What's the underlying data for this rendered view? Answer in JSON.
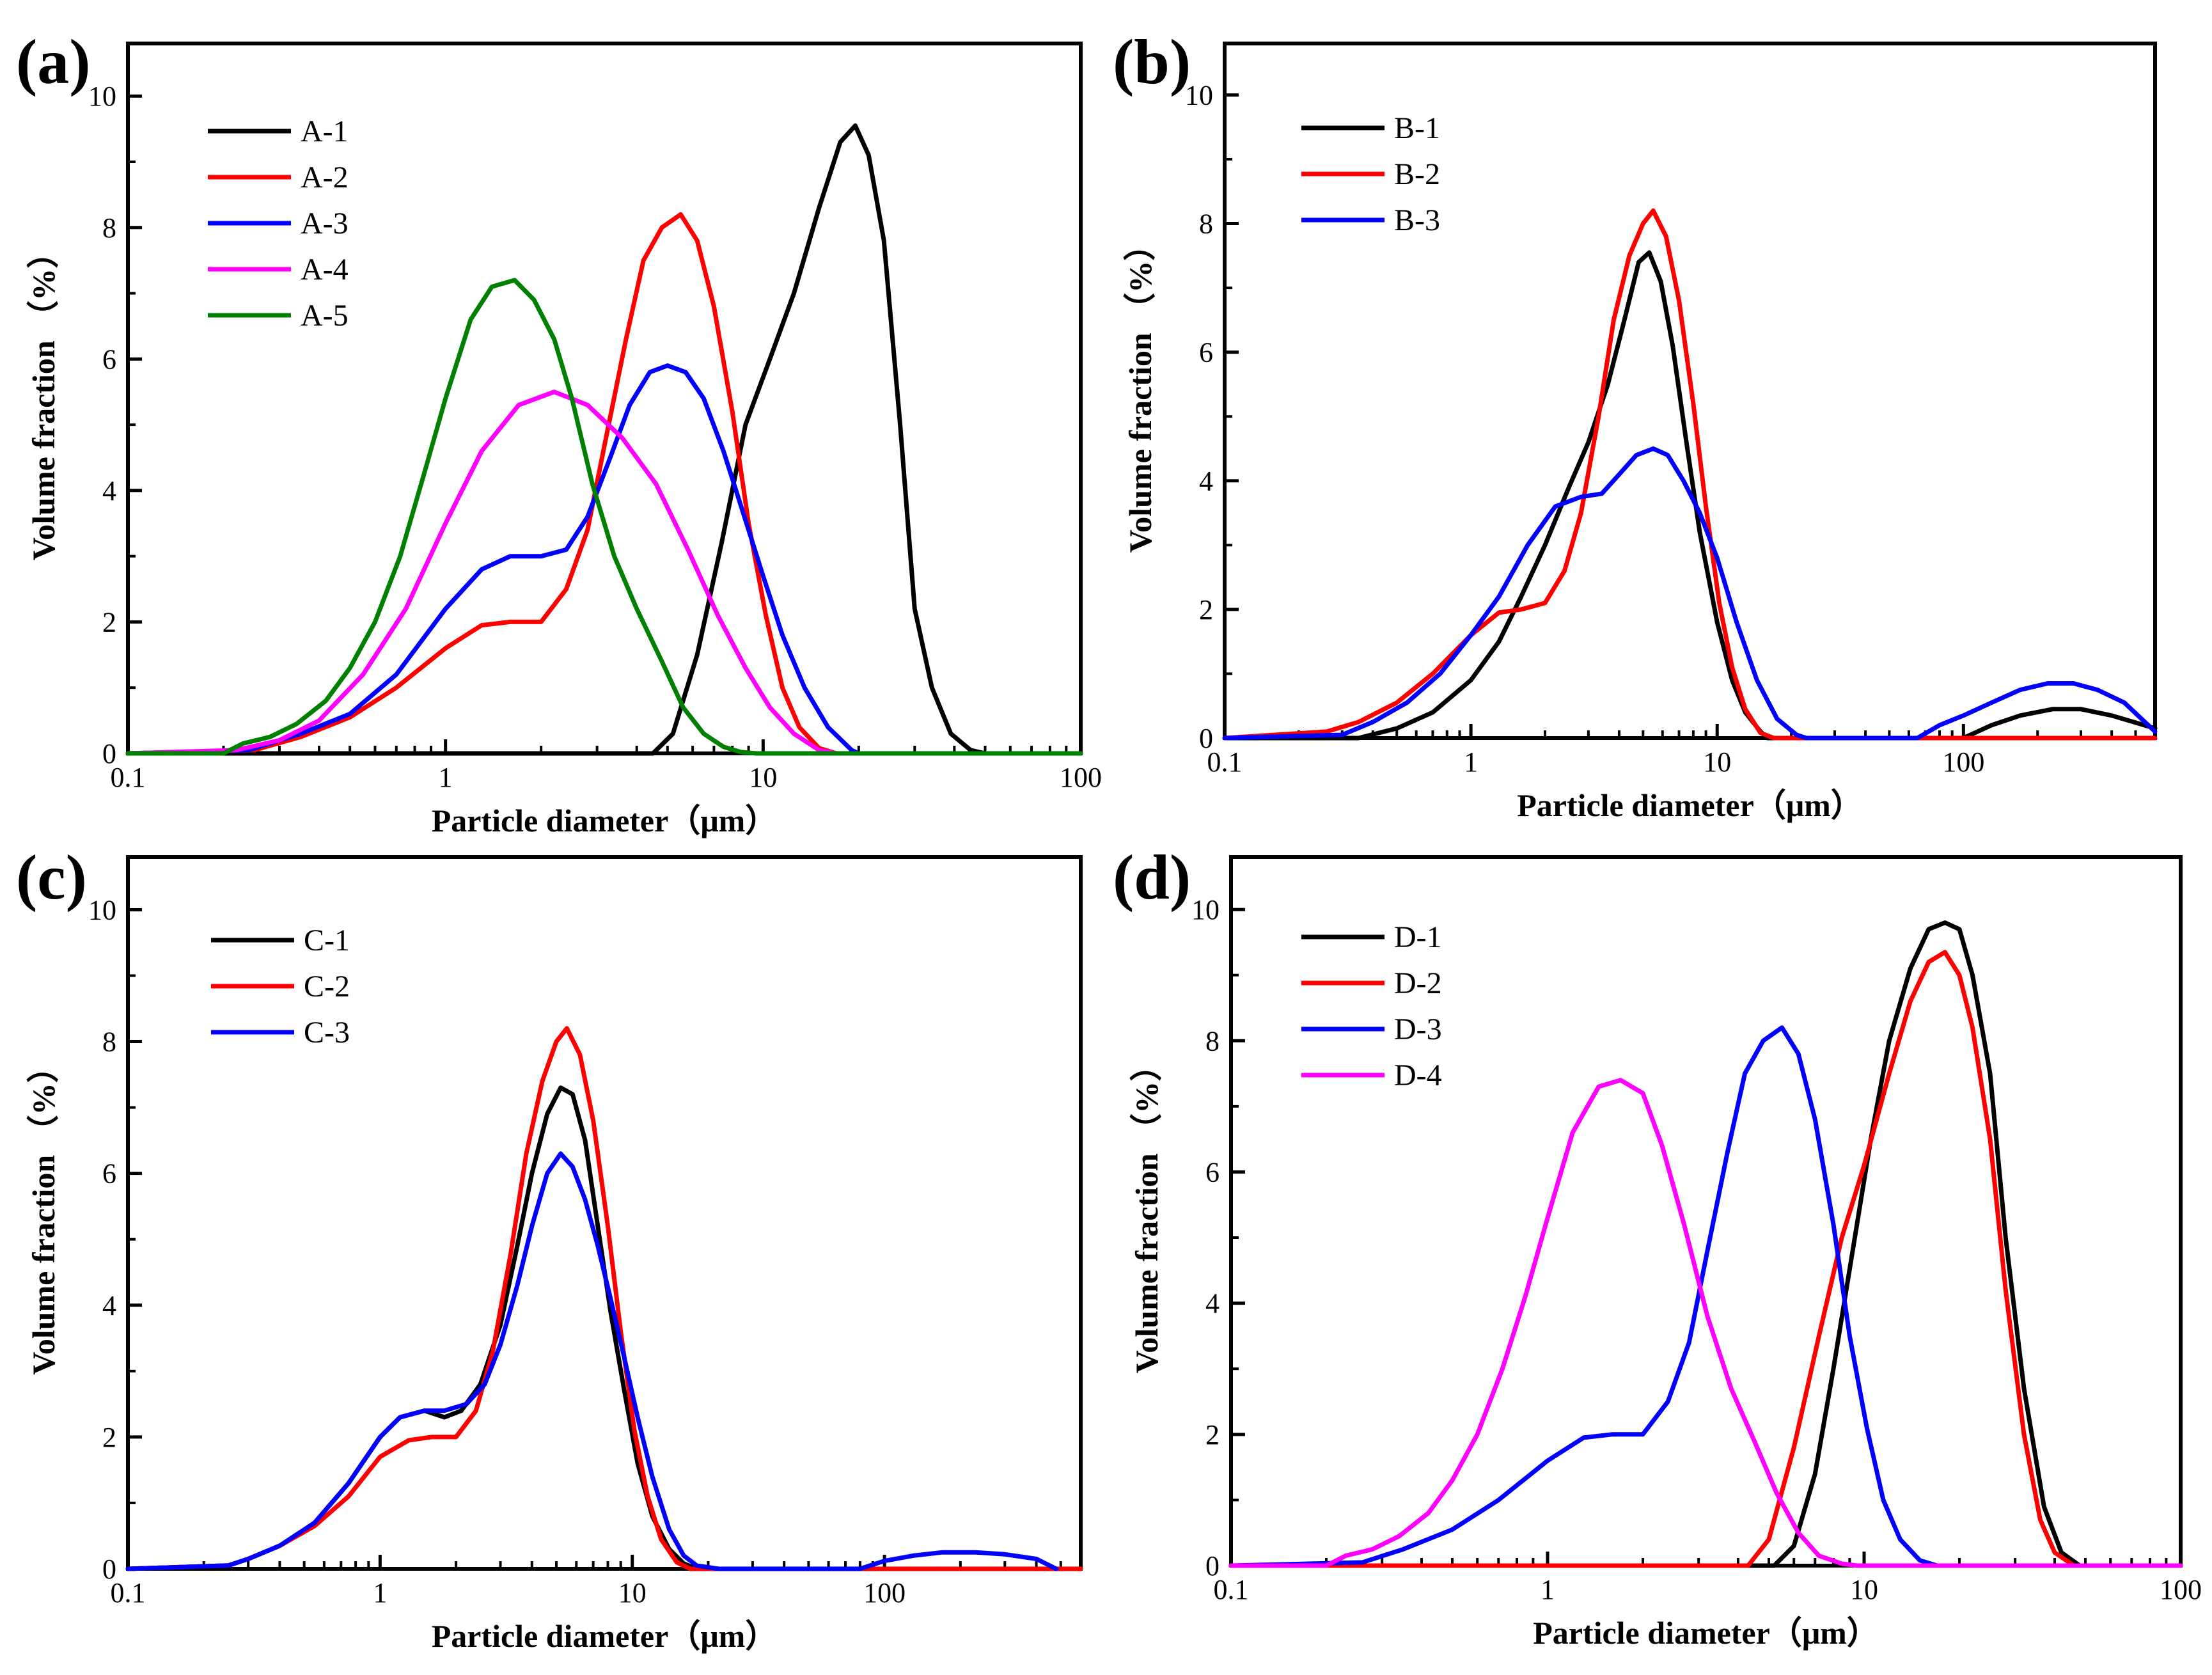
{
  "chart_data": [
    {
      "panel": "(a)",
      "type": "line",
      "xscale": "log",
      "xlabel": "Particle diameter（μm）",
      "ylabel": "Volume fraction （%）",
      "xlim": [
        0.1,
        100
      ],
      "ylim": [
        0,
        10.8
      ],
      "xticks": [
        0.1,
        1,
        10,
        100
      ],
      "xtick_labels": [
        "0.1",
        "1",
        "10",
        "100"
      ],
      "yticks": [
        0,
        2,
        4,
        6,
        8,
        10
      ],
      "ytick_labels": [
        "0",
        "2",
        "4",
        "6",
        "8",
        "10"
      ],
      "legend_position": "top-left",
      "series": [
        {
          "name": "A-1",
          "color": "#000000",
          "x": [
            0.1,
            4.5,
            5.2,
            6.2,
            7.4,
            8.8,
            10.5,
            12.5,
            15,
            17.5,
            19.5,
            21.5,
            24,
            27,
            30,
            34,
            39,
            45,
            50,
            100
          ],
          "y": [
            0,
            0,
            0.3,
            1.5,
            3.2,
            5.0,
            6.0,
            7.0,
            8.3,
            9.3,
            9.55,
            9.1,
            7.8,
            5.0,
            2.2,
            1.0,
            0.3,
            0.05,
            0,
            0
          ]
        },
        {
          "name": "A-2",
          "color": "#ff0000",
          "x": [
            0.1,
            0.25,
            0.35,
            0.5,
            0.7,
            1.0,
            1.3,
            1.6,
            2.0,
            2.4,
            2.8,
            3.2,
            3.7,
            4.2,
            4.8,
            5.5,
            6.2,
            7.0,
            8.0,
            9.0,
            10.2,
            11.5,
            13,
            15,
            17,
            100
          ],
          "y": [
            0,
            0.05,
            0.25,
            0.55,
            1.0,
            1.6,
            1.95,
            2.0,
            2.0,
            2.5,
            3.4,
            4.8,
            6.3,
            7.5,
            8.0,
            8.2,
            7.8,
            6.8,
            5.2,
            3.5,
            2.1,
            1.0,
            0.4,
            0.08,
            0,
            0
          ]
        },
        {
          "name": "A-3",
          "color": "#0000ff",
          "x": [
            0.1,
            0.24,
            0.35,
            0.5,
            0.7,
            1.0,
            1.3,
            1.6,
            2.0,
            2.4,
            2.8,
            3.3,
            3.8,
            4.4,
            5.0,
            5.7,
            6.5,
            7.5,
            8.6,
            10,
            11.5,
            13.5,
            16,
            19,
            20,
            100
          ],
          "y": [
            0,
            0.05,
            0.3,
            0.6,
            1.2,
            2.2,
            2.8,
            3.0,
            3.0,
            3.1,
            3.6,
            4.5,
            5.3,
            5.8,
            5.9,
            5.8,
            5.4,
            4.6,
            3.7,
            2.7,
            1.8,
            1.0,
            0.4,
            0.05,
            0,
            0
          ]
        },
        {
          "name": "A-4",
          "color": "#ff00ff",
          "x": [
            0.1,
            0.22,
            0.3,
            0.4,
            0.55,
            0.75,
            1.0,
            1.3,
            1.7,
            2.2,
            2.8,
            3.6,
            4.6,
            5.8,
            7.2,
            8.8,
            10.5,
            12.5,
            15,
            17,
            100
          ],
          "y": [
            0,
            0.05,
            0.2,
            0.5,
            1.2,
            2.2,
            3.5,
            4.6,
            5.3,
            5.5,
            5.3,
            4.8,
            4.1,
            3.1,
            2.1,
            1.3,
            0.7,
            0.3,
            0.05,
            0,
            0
          ]
        },
        {
          "name": "A-5",
          "color": "#008000",
          "x": [
            0.1,
            0.2,
            0.23,
            0.28,
            0.34,
            0.42,
            0.5,
            0.6,
            0.72,
            0.85,
            1.0,
            1.2,
            1.4,
            1.65,
            1.9,
            2.2,
            2.5,
            2.9,
            3.4,
            4.0,
            4.8,
            5.6,
            6.5,
            7.5,
            8.5,
            9.5,
            100
          ],
          "y": [
            0,
            0,
            0.15,
            0.25,
            0.45,
            0.8,
            1.3,
            2.0,
            3.0,
            4.2,
            5.4,
            6.6,
            7.1,
            7.2,
            6.9,
            6.3,
            5.4,
            4.1,
            3.0,
            2.2,
            1.4,
            0.7,
            0.3,
            0.1,
            0.02,
            0,
            0
          ]
        }
      ]
    },
    {
      "panel": "(b)",
      "type": "line",
      "xscale": "log",
      "xlabel": "Particle diameter（μm）",
      "ylabel": "Volume fraction （%）",
      "xlim": [
        0.1,
        600
      ],
      "ylim": [
        0,
        10.8
      ],
      "xticks": [
        0.1,
        1,
        10,
        100
      ],
      "xtick_labels": [
        "0.1",
        "1",
        "10",
        "100"
      ],
      "yticks": [
        0,
        2,
        4,
        6,
        8,
        10
      ],
      "ytick_labels": [
        "0",
        "2",
        "4",
        "6",
        "8",
        "10"
      ],
      "legend_position": "top-left",
      "series": [
        {
          "name": "B-1",
          "color": "#000000",
          "x": [
            0.1,
            0.35,
            0.5,
            0.7,
            1.0,
            1.3,
            1.6,
            2.0,
            2.5,
            3.0,
            3.6,
            4.2,
            4.8,
            5.3,
            5.9,
            6.6,
            7.5,
            8.5,
            10,
            11.5,
            13,
            15,
            16,
            100,
            130,
            170,
            230,
            300,
            400,
            600
          ],
          "y": [
            0,
            0,
            0.15,
            0.4,
            0.9,
            1.5,
            2.2,
            3.0,
            3.9,
            4.6,
            5.5,
            6.5,
            7.4,
            7.55,
            7.1,
            6.1,
            4.6,
            3.2,
            1.8,
            0.9,
            0.4,
            0.1,
            0,
            0,
            0.2,
            0.35,
            0.45,
            0.45,
            0.35,
            0.15
          ]
        },
        {
          "name": "B-2",
          "color": "#ff0000",
          "x": [
            0.1,
            0.26,
            0.35,
            0.5,
            0.7,
            1.0,
            1.3,
            1.6,
            2.0,
            2.4,
            2.8,
            3.3,
            3.8,
            4.4,
            5.0,
            5.5,
            6.2,
            7.0,
            8.0,
            9.0,
            10.2,
            11.5,
            13,
            15,
            17,
            600
          ],
          "y": [
            0,
            0.1,
            0.25,
            0.55,
            1.0,
            1.6,
            1.95,
            2.0,
            2.1,
            2.6,
            3.5,
            5.0,
            6.5,
            7.5,
            8.0,
            8.2,
            7.8,
            6.8,
            5.2,
            3.6,
            2.1,
            1.1,
            0.45,
            0.08,
            0,
            0
          ]
        },
        {
          "name": "B-3",
          "color": "#0000ff",
          "x": [
            0.1,
            0.3,
            0.4,
            0.55,
            0.75,
            1.0,
            1.3,
            1.7,
            2.2,
            2.8,
            3.4,
            4.0,
            4.7,
            5.5,
            6.3,
            7.3,
            8.5,
            10,
            12,
            14.5,
            17.5,
            21,
            23,
            65,
            80,
            100,
            130,
            170,
            220,
            280,
            350,
            450,
            600
          ],
          "y": [
            0,
            0.05,
            0.25,
            0.55,
            1.0,
            1.6,
            2.2,
            3.0,
            3.6,
            3.75,
            3.8,
            4.1,
            4.4,
            4.5,
            4.4,
            4.0,
            3.5,
            2.8,
            1.8,
            0.9,
            0.3,
            0.05,
            0,
            0,
            0.2,
            0.35,
            0.55,
            0.75,
            0.85,
            0.85,
            0.75,
            0.55,
            0.1
          ]
        }
      ]
    },
    {
      "panel": "(c)",
      "type": "line",
      "xscale": "log",
      "xlabel": "Particle diameter（μm）",
      "ylabel": "Volume fraction （%）",
      "xlim": [
        0.1,
        600
      ],
      "ylim": [
        0,
        10.8
      ],
      "xticks": [
        0.1,
        1,
        10,
        100
      ],
      "xtick_labels": [
        "0.1",
        "1",
        "10",
        "100"
      ],
      "yticks": [
        0,
        2,
        4,
        6,
        8,
        10
      ],
      "ytick_labels": [
        "0",
        "2",
        "4",
        "6",
        "8",
        "10"
      ],
      "legend_position": "top-left",
      "series": [
        {
          "name": "C-1",
          "color": "#000000",
          "x": [
            0.1,
            0.25,
            0.3,
            0.4,
            0.55,
            0.75,
            1.0,
            1.2,
            1.5,
            1.8,
            2.1,
            2.5,
            3.0,
            3.5,
            4.0,
            4.6,
            5.2,
            5.8,
            6.5,
            7.3,
            8.2,
            9.3,
            10.5,
            12,
            14,
            16,
            18,
            600
          ],
          "y": [
            0,
            0.05,
            0.15,
            0.35,
            0.7,
            1.3,
            2.0,
            2.3,
            2.4,
            2.3,
            2.4,
            2.8,
            3.7,
            4.9,
            6.0,
            6.9,
            7.3,
            7.2,
            6.5,
            5.2,
            3.9,
            2.7,
            1.6,
            0.8,
            0.3,
            0.08,
            0,
            0
          ]
        },
        {
          "name": "C-2",
          "color": "#ff0000",
          "x": [
            0.1,
            0.25,
            0.3,
            0.4,
            0.55,
            0.75,
            1.0,
            1.3,
            1.6,
            2.0,
            2.4,
            2.8,
            3.3,
            3.8,
            4.4,
            5.0,
            5.5,
            6.2,
            7.0,
            8.0,
            9.0,
            10.2,
            11.5,
            13,
            15,
            17,
            600
          ],
          "y": [
            0,
            0.05,
            0.15,
            0.35,
            0.65,
            1.1,
            1.7,
            1.95,
            2.0,
            2.0,
            2.4,
            3.3,
            4.8,
            6.3,
            7.4,
            8.0,
            8.2,
            7.8,
            6.8,
            5.2,
            3.6,
            2.1,
            1.1,
            0.45,
            0.1,
            0,
            0
          ]
        },
        {
          "name": "C-3",
          "color": "#0000ff",
          "x": [
            0.1,
            0.25,
            0.3,
            0.4,
            0.55,
            0.75,
            1.0,
            1.2,
            1.5,
            1.8,
            2.2,
            2.6,
            3.0,
            3.5,
            4.0,
            4.6,
            5.2,
            5.8,
            6.5,
            7.3,
            8.2,
            9.3,
            10.5,
            12,
            14,
            16,
            18,
            22,
            80,
            100,
            130,
            170,
            230,
            300,
            400,
            480
          ],
          "y": [
            0,
            0.05,
            0.15,
            0.35,
            0.7,
            1.3,
            2.0,
            2.3,
            2.4,
            2.4,
            2.5,
            2.8,
            3.4,
            4.3,
            5.2,
            6.0,
            6.3,
            6.1,
            5.6,
            4.9,
            4.1,
            3.2,
            2.3,
            1.4,
            0.6,
            0.2,
            0.05,
            0,
            0,
            0.12,
            0.2,
            0.25,
            0.25,
            0.22,
            0.15,
            0
          ]
        }
      ]
    },
    {
      "panel": "(d)",
      "type": "line",
      "xscale": "log",
      "xlabel": "Particle diameter（μm）",
      "ylabel": "Volume fraction （%）",
      "xlim": [
        0.1,
        100
      ],
      "ylim": [
        0,
        10.8
      ],
      "xticks": [
        0.1,
        1,
        10,
        100
      ],
      "xtick_labels": [
        "0.1",
        "1",
        "10",
        "100"
      ],
      "yticks": [
        0,
        2,
        4,
        6,
        8,
        10
      ],
      "ytick_labels": [
        "0",
        "2",
        "4",
        "6",
        "8",
        "10"
      ],
      "legend_position": "top-left",
      "series": [
        {
          "name": "D-1",
          "color": "#000000",
          "x": [
            0.1,
            5.2,
            6.0,
            7.0,
            8.0,
            9.2,
            10.5,
            12,
            14,
            16,
            18,
            20,
            22,
            25,
            28,
            32,
            37,
            42,
            48,
            100
          ],
          "y": [
            0,
            0,
            0.3,
            1.4,
            3.0,
            4.8,
            6.5,
            8.0,
            9.1,
            9.7,
            9.8,
            9.7,
            9.0,
            7.5,
            5.0,
            2.7,
            0.9,
            0.2,
            0,
            0
          ]
        },
        {
          "name": "D-2",
          "color": "#ff0000",
          "x": [
            0.1,
            4.3,
            5.0,
            6.0,
            7.2,
            8.5,
            10,
            12,
            14,
            16,
            18,
            20,
            22,
            25,
            28,
            32,
            36,
            40,
            46,
            100
          ],
          "y": [
            0,
            0,
            0.4,
            1.8,
            3.5,
            5.0,
            6.1,
            7.5,
            8.6,
            9.2,
            9.35,
            9.0,
            8.2,
            6.5,
            4.2,
            2.0,
            0.7,
            0.2,
            0,
            0
          ]
        },
        {
          "name": "D-3",
          "color": "#0000ff",
          "x": [
            0.1,
            0.26,
            0.35,
            0.5,
            0.7,
            1.0,
            1.3,
            1.6,
            2.0,
            2.4,
            2.8,
            3.2,
            3.7,
            4.2,
            4.8,
            5.5,
            6.2,
            7.0,
            8.0,
            9.0,
            10.2,
            11.5,
            13,
            15,
            17,
            100
          ],
          "y": [
            0,
            0.05,
            0.25,
            0.55,
            1.0,
            1.6,
            1.95,
            2.0,
            2.0,
            2.5,
            3.4,
            4.8,
            6.3,
            7.5,
            8.0,
            8.2,
            7.8,
            6.8,
            5.2,
            3.5,
            2.1,
            1.0,
            0.4,
            0.08,
            0,
            0
          ]
        },
        {
          "name": "D-4",
          "color": "#ff00ff",
          "x": [
            0.1,
            0.2,
            0.23,
            0.28,
            0.34,
            0.42,
            0.5,
            0.6,
            0.72,
            0.85,
            1.0,
            1.2,
            1.45,
            1.7,
            2.0,
            2.3,
            2.7,
            3.2,
            3.8,
            4.5,
            5.3,
            6.2,
            7.2,
            8.5,
            9.5,
            100
          ],
          "y": [
            0,
            0,
            0.15,
            0.25,
            0.45,
            0.8,
            1.3,
            2.0,
            3.0,
            4.1,
            5.3,
            6.6,
            7.3,
            7.4,
            7.2,
            6.4,
            5.2,
            3.8,
            2.7,
            1.9,
            1.1,
            0.5,
            0.15,
            0.03,
            0,
            0
          ]
        }
      ]
    }
  ]
}
